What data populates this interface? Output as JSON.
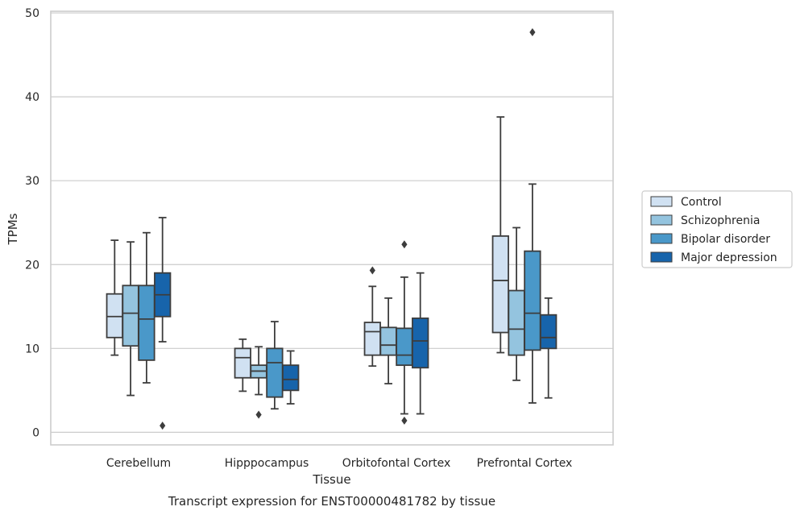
{
  "chart_data": {
    "type": "box",
    "title": "",
    "caption": "Transcript expression for ENST00000481782 by tissue",
    "xlabel": "Tissue",
    "ylabel": "TPMs",
    "ylim": [
      -1.5,
      50.2
    ],
    "yticks": [
      0,
      10,
      20,
      30,
      40,
      50
    ],
    "grid": "horizontal",
    "legend_position": "outside-right",
    "categories": [
      "Cerebellum",
      "Hipppocampus",
      "Orbitofontal Cortex",
      "Prefrontal Cortex"
    ],
    "series": [
      {
        "name": "Control",
        "color": "#d0e1f2",
        "boxes": [
          {
            "whisker_low": 9.2,
            "q1": 11.3,
            "median": 13.8,
            "q3": 16.5,
            "whisker_high": 22.9,
            "outliers": []
          },
          {
            "whisker_low": 4.9,
            "q1": 6.5,
            "median": 8.9,
            "q3": 10.0,
            "whisker_high": 11.1,
            "outliers": []
          },
          {
            "whisker_low": 7.9,
            "q1": 9.2,
            "median": 12.0,
            "q3": 13.1,
            "whisker_high": 17.4,
            "outliers": [
              19.3
            ]
          },
          {
            "whisker_low": 9.5,
            "q1": 11.9,
            "median": 18.1,
            "q3": 23.4,
            "whisker_high": 37.6,
            "outliers": []
          }
        ]
      },
      {
        "name": "Schizophrenia",
        "color": "#94c4df",
        "boxes": [
          {
            "whisker_low": 4.4,
            "q1": 10.3,
            "median": 14.2,
            "q3": 17.5,
            "whisker_high": 22.7,
            "outliers": []
          },
          {
            "whisker_low": 4.5,
            "q1": 6.5,
            "median": 7.3,
            "q3": 8.0,
            "whisker_high": 10.2,
            "outliers": [
              2.1
            ]
          },
          {
            "whisker_low": 5.8,
            "q1": 9.2,
            "median": 10.4,
            "q3": 12.5,
            "whisker_high": 16.0,
            "outliers": []
          },
          {
            "whisker_low": 6.2,
            "q1": 9.2,
            "median": 12.3,
            "q3": 16.9,
            "whisker_high": 24.4,
            "outliers": []
          }
        ]
      },
      {
        "name": "Bipolar disorder",
        "color": "#4a98c9",
        "boxes": [
          {
            "whisker_low": 5.9,
            "q1": 8.6,
            "median": 13.5,
            "q3": 17.5,
            "whisker_high": 23.8,
            "outliers": []
          },
          {
            "whisker_low": 2.8,
            "q1": 4.2,
            "median": 8.3,
            "q3": 10.0,
            "whisker_high": 13.2,
            "outliers": []
          },
          {
            "whisker_low": 2.2,
            "q1": 8.0,
            "median": 9.2,
            "q3": 12.4,
            "whisker_high": 18.5,
            "outliers": [
              1.4,
              22.4
            ]
          },
          {
            "whisker_low": 3.5,
            "q1": 9.8,
            "median": 14.2,
            "q3": 21.6,
            "whisker_high": 29.6,
            "outliers": [
              47.7
            ]
          }
        ]
      },
      {
        "name": "Major depression",
        "color": "#1764ab",
        "boxes": [
          {
            "whisker_low": 10.8,
            "q1": 13.8,
            "median": 16.4,
            "q3": 19.0,
            "whisker_high": 25.6,
            "outliers": [
              0.8
            ]
          },
          {
            "whisker_low": 3.4,
            "q1": 5.0,
            "median": 6.3,
            "q3": 8.0,
            "whisker_high": 9.7,
            "outliers": []
          },
          {
            "whisker_low": 2.2,
            "q1": 7.7,
            "median": 10.9,
            "q3": 13.6,
            "whisker_high": 19.0,
            "outliers": []
          },
          {
            "whisker_low": 4.1,
            "q1": 10.0,
            "median": 11.3,
            "q3": 14.0,
            "whisker_high": 16.0,
            "outliers": []
          }
        ]
      }
    ]
  }
}
